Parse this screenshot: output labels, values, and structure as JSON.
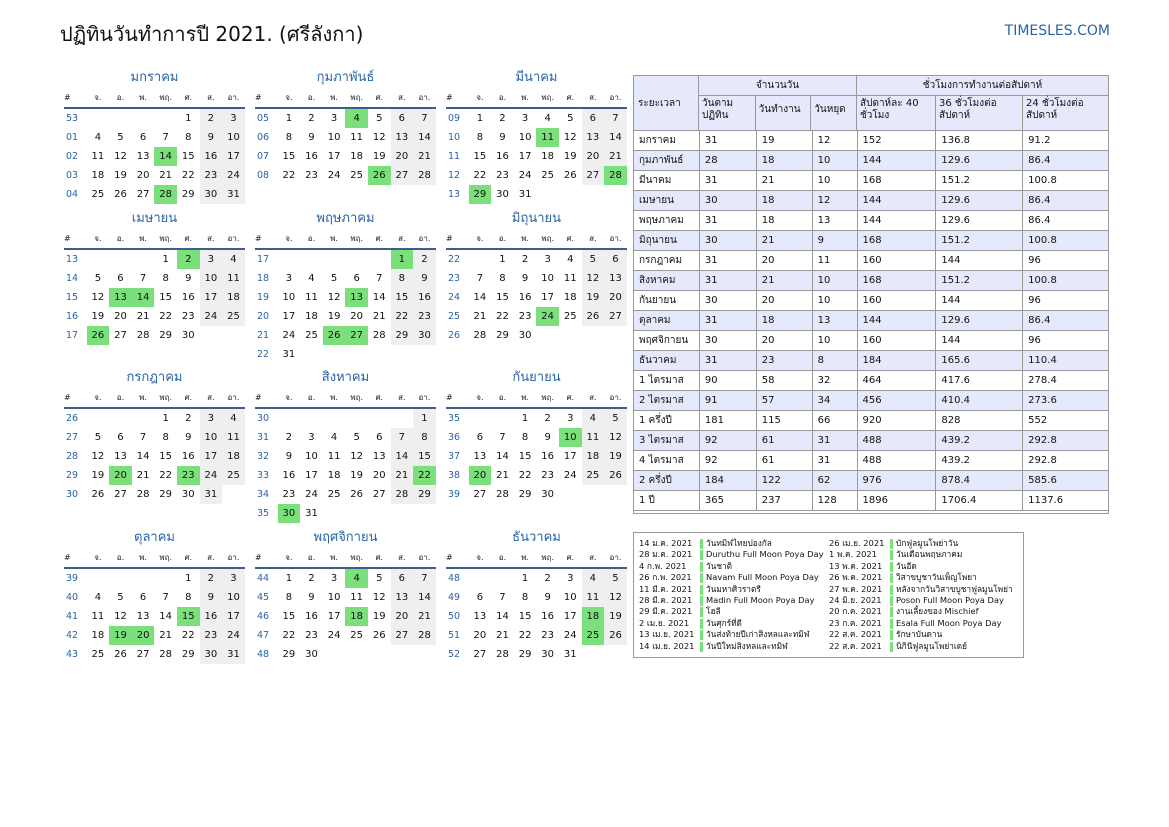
{
  "title": "ปฏิทินวันทำการปี 2021. (ศรีลังกา)",
  "site": "TIMESLES.COM",
  "colors": {
    "accent": "#2a64a8",
    "holiday": "#7be07b",
    "weekend": "#efefef",
    "table_header": "#e6e9fb"
  },
  "weekday_headers": [
    "#",
    "จ.",
    "อ.",
    "พ.",
    "พฤ.",
    "ศ.",
    "ส.",
    "อา."
  ],
  "months": [
    {
      "name": "มกราคม",
      "weeks": [
        {
          "n": "53",
          "d": [
            "",
            "",
            "",
            "",
            "1",
            "2",
            "3"
          ]
        },
        {
          "n": "01",
          "d": [
            "4",
            "5",
            "6",
            "7",
            "8",
            "9",
            "10"
          ]
        },
        {
          "n": "02",
          "d": [
            "11",
            "12",
            "13",
            "14",
            "15",
            "16",
            "17"
          ]
        },
        {
          "n": "03",
          "d": [
            "18",
            "19",
            "20",
            "21",
            "22",
            "23",
            "24"
          ]
        },
        {
          "n": "04",
          "d": [
            "25",
            "26",
            "27",
            "28",
            "29",
            "30",
            "31"
          ]
        }
      ],
      "holidays": [
        "14",
        "28"
      ]
    },
    {
      "name": "กุมภาพันธ์",
      "weeks": [
        {
          "n": "05",
          "d": [
            "1",
            "2",
            "3",
            "4",
            "5",
            "6",
            "7"
          ]
        },
        {
          "n": "06",
          "d": [
            "8",
            "9",
            "10",
            "11",
            "12",
            "13",
            "14"
          ]
        },
        {
          "n": "07",
          "d": [
            "15",
            "16",
            "17",
            "18",
            "19",
            "20",
            "21"
          ]
        },
        {
          "n": "08",
          "d": [
            "22",
            "23",
            "24",
            "25",
            "26",
            "27",
            "28"
          ]
        }
      ],
      "holidays": [
        "4",
        "26"
      ]
    },
    {
      "name": "มีนาคม",
      "weeks": [
        {
          "n": "09",
          "d": [
            "1",
            "2",
            "3",
            "4",
            "5",
            "6",
            "7"
          ]
        },
        {
          "n": "10",
          "d": [
            "8",
            "9",
            "10",
            "11",
            "12",
            "13",
            "14"
          ]
        },
        {
          "n": "11",
          "d": [
            "15",
            "16",
            "17",
            "18",
            "19",
            "20",
            "21"
          ]
        },
        {
          "n": "12",
          "d": [
            "22",
            "23",
            "24",
            "25",
            "26",
            "27",
            "28"
          ]
        },
        {
          "n": "13",
          "d": [
            "29",
            "30",
            "31",
            "",
            "",
            "",
            ""
          ]
        }
      ],
      "holidays": [
        "11",
        "28",
        "29"
      ]
    },
    {
      "name": "เมษายน",
      "weeks": [
        {
          "n": "13",
          "d": [
            "",
            "",
            "",
            "1",
            "2",
            "3",
            "4"
          ]
        },
        {
          "n": "14",
          "d": [
            "5",
            "6",
            "7",
            "8",
            "9",
            "10",
            "11"
          ]
        },
        {
          "n": "15",
          "d": [
            "12",
            "13",
            "14",
            "15",
            "16",
            "17",
            "18"
          ]
        },
        {
          "n": "16",
          "d": [
            "19",
            "20",
            "21",
            "22",
            "23",
            "24",
            "25"
          ]
        },
        {
          "n": "17",
          "d": [
            "26",
            "27",
            "28",
            "29",
            "30",
            "",
            ""
          ]
        }
      ],
      "holidays": [
        "2",
        "13",
        "14",
        "26"
      ]
    },
    {
      "name": "พฤษภาคม",
      "weeks": [
        {
          "n": "17",
          "d": [
            "",
            "",
            "",
            "",
            "",
            "1",
            "2"
          ]
        },
        {
          "n": "18",
          "d": [
            "3",
            "4",
            "5",
            "6",
            "7",
            "8",
            "9"
          ]
        },
        {
          "n": "19",
          "d": [
            "10",
            "11",
            "12",
            "13",
            "14",
            "15",
            "16"
          ]
        },
        {
          "n": "20",
          "d": [
            "17",
            "18",
            "19",
            "20",
            "21",
            "22",
            "23"
          ]
        },
        {
          "n": "21",
          "d": [
            "24",
            "25",
            "26",
            "27",
            "28",
            "29",
            "30"
          ]
        },
        {
          "n": "22",
          "d": [
            "31",
            "",
            "",
            "",
            "",
            "",
            ""
          ]
        }
      ],
      "holidays": [
        "1",
        "13",
        "26",
        "27"
      ]
    },
    {
      "name": "มิถุนายน",
      "weeks": [
        {
          "n": "22",
          "d": [
            "",
            "1",
            "2",
            "3",
            "4",
            "5",
            "6"
          ]
        },
        {
          "n": "23",
          "d": [
            "7",
            "8",
            "9",
            "10",
            "11",
            "12",
            "13"
          ]
        },
        {
          "n": "24",
          "d": [
            "14",
            "15",
            "16",
            "17",
            "18",
            "19",
            "20"
          ]
        },
        {
          "n": "25",
          "d": [
            "21",
            "22",
            "23",
            "24",
            "25",
            "26",
            "27"
          ]
        },
        {
          "n": "26",
          "d": [
            "28",
            "29",
            "30",
            "",
            "",
            "",
            ""
          ]
        }
      ],
      "holidays": [
        "24"
      ]
    },
    {
      "name": "กรกฎาคม",
      "weeks": [
        {
          "n": "26",
          "d": [
            "",
            "",
            "",
            "1",
            "2",
            "3",
            "4"
          ]
        },
        {
          "n": "27",
          "d": [
            "5",
            "6",
            "7",
            "8",
            "9",
            "10",
            "11"
          ]
        },
        {
          "n": "28",
          "d": [
            "12",
            "13",
            "14",
            "15",
            "16",
            "17",
            "18"
          ]
        },
        {
          "n": "29",
          "d": [
            "19",
            "20",
            "21",
            "22",
            "23",
            "24",
            "25"
          ]
        },
        {
          "n": "30",
          "d": [
            "26",
            "27",
            "28",
            "29",
            "30",
            "31",
            ""
          ]
        }
      ],
      "holidays": [
        "20",
        "23"
      ]
    },
    {
      "name": "สิงหาคม",
      "weeks": [
        {
          "n": "30",
          "d": [
            "",
            "",
            "",
            "",
            "",
            "",
            "1"
          ]
        },
        {
          "n": "31",
          "d": [
            "2",
            "3",
            "4",
            "5",
            "6",
            "7",
            "8"
          ]
        },
        {
          "n": "32",
          "d": [
            "9",
            "10",
            "11",
            "12",
            "13",
            "14",
            "15"
          ]
        },
        {
          "n": "33",
          "d": [
            "16",
            "17",
            "18",
            "19",
            "20",
            "21",
            "22"
          ]
        },
        {
          "n": "34",
          "d": [
            "23",
            "24",
            "25",
            "26",
            "27",
            "28",
            "29"
          ]
        },
        {
          "n": "35",
          "d": [
            "30",
            "31",
            "",
            "",
            "",
            "",
            ""
          ]
        }
      ],
      "holidays": [
        "22",
        "30"
      ]
    },
    {
      "name": "กันยายน",
      "weeks": [
        {
          "n": "35",
          "d": [
            "",
            "",
            "1",
            "2",
            "3",
            "4",
            "5"
          ]
        },
        {
          "n": "36",
          "d": [
            "6",
            "7",
            "8",
            "9",
            "10",
            "11",
            "12"
          ]
        },
        {
          "n": "37",
          "d": [
            "13",
            "14",
            "15",
            "16",
            "17",
            "18",
            "19"
          ]
        },
        {
          "n": "38",
          "d": [
            "20",
            "21",
            "22",
            "23",
            "24",
            "25",
            "26"
          ]
        },
        {
          "n": "39",
          "d": [
            "27",
            "28",
            "29",
            "30",
            "",
            "",
            ""
          ]
        }
      ],
      "holidays": [
        "10",
        "20"
      ]
    },
    {
      "name": "ตุลาคม",
      "weeks": [
        {
          "n": "39",
          "d": [
            "",
            "",
            "",
            "",
            "1",
            "2",
            "3"
          ]
        },
        {
          "n": "40",
          "d": [
            "4",
            "5",
            "6",
            "7",
            "8",
            "9",
            "10"
          ]
        },
        {
          "n": "41",
          "d": [
            "11",
            "12",
            "13",
            "14",
            "15",
            "16",
            "17"
          ]
        },
        {
          "n": "42",
          "d": [
            "18",
            "19",
            "20",
            "21",
            "22",
            "23",
            "24"
          ]
        },
        {
          "n": "43",
          "d": [
            "25",
            "26",
            "27",
            "28",
            "29",
            "30",
            "31"
          ]
        }
      ],
      "holidays": [
        "15",
        "19",
        "20"
      ]
    },
    {
      "name": "พฤศจิกายน",
      "weeks": [
        {
          "n": "44",
          "d": [
            "1",
            "2",
            "3",
            "4",
            "5",
            "6",
            "7"
          ]
        },
        {
          "n": "45",
          "d": [
            "8",
            "9",
            "10",
            "11",
            "12",
            "13",
            "14"
          ]
        },
        {
          "n": "46",
          "d": [
            "15",
            "16",
            "17",
            "18",
            "19",
            "20",
            "21"
          ]
        },
        {
          "n": "47",
          "d": [
            "22",
            "23",
            "24",
            "25",
            "26",
            "27",
            "28"
          ]
        },
        {
          "n": "48",
          "d": [
            "29",
            "30",
            "",
            "",
            "",
            "",
            ""
          ]
        }
      ],
      "holidays": [
        "4",
        "18"
      ]
    },
    {
      "name": "ธันวาคม",
      "weeks": [
        {
          "n": "48",
          "d": [
            "",
            "",
            "1",
            "2",
            "3",
            "4",
            "5"
          ]
        },
        {
          "n": "49",
          "d": [
            "6",
            "7",
            "8",
            "9",
            "10",
            "11",
            "12"
          ]
        },
        {
          "n": "50",
          "d": [
            "13",
            "14",
            "15",
            "16",
            "17",
            "18",
            "19"
          ]
        },
        {
          "n": "51",
          "d": [
            "20",
            "21",
            "22",
            "23",
            "24",
            "25",
            "26"
          ]
        },
        {
          "n": "52",
          "d": [
            "27",
            "28",
            "29",
            "30",
            "31",
            "",
            ""
          ]
        }
      ],
      "holidays": [
        "18",
        "25"
      ]
    }
  ],
  "stats": {
    "period_label": "ระยะเวลา",
    "days_group": "จำนวนวัน",
    "hours_group": "ชั่วโมงการทำงานต่อสัปดาห์",
    "columns": [
      "วันตามปฏิทิน",
      "วันทำงาน",
      "วันหยุด",
      "สัปดาห์ละ 40 ชั่วโมง",
      "36 ชั่วโมงต่อสัปดาห์",
      "24 ชั่วโมงต่อสัปดาห์"
    ],
    "rows": [
      [
        "มกราคม",
        "31",
        "19",
        "12",
        "152",
        "136.8",
        "91.2"
      ],
      [
        "กุมภาพันธ์",
        "28",
        "18",
        "10",
        "144",
        "129.6",
        "86.4"
      ],
      [
        "มีนาคม",
        "31",
        "21",
        "10",
        "168",
        "151.2",
        "100.8"
      ],
      [
        "เมษายน",
        "30",
        "18",
        "12",
        "144",
        "129.6",
        "86.4"
      ],
      [
        "พฤษภาคม",
        "31",
        "18",
        "13",
        "144",
        "129.6",
        "86.4"
      ],
      [
        "มิถุนายน",
        "30",
        "21",
        "9",
        "168",
        "151.2",
        "100.8"
      ],
      [
        "กรกฎาคม",
        "31",
        "20",
        "11",
        "160",
        "144",
        "96"
      ],
      [
        "สิงหาคม",
        "31",
        "21",
        "10",
        "168",
        "151.2",
        "100.8"
      ],
      [
        "กันยายน",
        "30",
        "20",
        "10",
        "160",
        "144",
        "96"
      ],
      [
        "ตุลาคม",
        "31",
        "18",
        "13",
        "144",
        "129.6",
        "86.4"
      ],
      [
        "พฤศจิกายน",
        "30",
        "20",
        "10",
        "160",
        "144",
        "96"
      ],
      [
        "ธันวาคม",
        "31",
        "23",
        "8",
        "184",
        "165.6",
        "110.4"
      ],
      [
        "1 ไตรมาส",
        "90",
        "58",
        "32",
        "464",
        "417.6",
        "278.4"
      ],
      [
        "2 ไตรมาส",
        "91",
        "57",
        "34",
        "456",
        "410.4",
        "273.6"
      ],
      [
        "1 ครึ่งปี",
        "181",
        "115",
        "66",
        "920",
        "828",
        "552"
      ],
      [
        "3 ไตรมาส",
        "92",
        "61",
        "31",
        "488",
        "439.2",
        "292.8"
      ],
      [
        "4 ไตรมาส",
        "92",
        "61",
        "31",
        "488",
        "439.2",
        "292.8"
      ],
      [
        "2 ครึ่งปี",
        "184",
        "122",
        "62",
        "976",
        "878.4",
        "585.6"
      ],
      [
        "1 ปี",
        "365",
        "237",
        "128",
        "1896",
        "1706.4",
        "1137.6"
      ]
    ]
  },
  "holidays_list": {
    "left": [
      [
        "14 ม.ค. 2021",
        "วันทมิฬไทยปองกัล"
      ],
      [
        "28 ม.ค. 2021",
        "Duruthu Full Moon Poya Day"
      ],
      [
        "4 ก.พ. 2021",
        "วันชาติ"
      ],
      [
        "26 ก.พ. 2021",
        "Navam Full Moon Poya Day"
      ],
      [
        "11 มี.ค. 2021",
        "วันมหาศิวราตรี"
      ],
      [
        "28 มี.ค. 2021",
        "Madin Full Moon Poya Day"
      ],
      [
        "29 มี.ค. 2021",
        "โฮลี"
      ],
      [
        "2 เม.ย. 2021",
        "วันศุกร์ที่ดี"
      ],
      [
        "13 เม.ย. 2021",
        "วันส่งท้ายปีเก่าสิงหลและทมิฬ"
      ],
      [
        "14 เม.ย. 2021",
        "วันปีใหม่สิงหลและทมิฬ"
      ]
    ],
    "right": [
      [
        "26 เม.ย. 2021",
        "บักฟูลมูนโพย่าวัน"
      ],
      [
        "1 พ.ค. 2021",
        "วันเดือนพฤษภาคม"
      ],
      [
        "13 พ.ค. 2021",
        "วันอีด"
      ],
      [
        "26 พ.ค. 2021",
        "วิสาขบูชาวันเพ็ญโพยา"
      ],
      [
        "27 พ.ค. 2021",
        "หลังจากวันวิสาขบูชาฟูลมูนโพย่า"
      ],
      [
        "24 มิ.ย. 2021",
        "Poson Full Moon Poya Day"
      ],
      [
        "20 ก.ค. 2021",
        "งานเลี้ยงของ Mischief"
      ],
      [
        "23 ก.ค. 2021",
        "Esala Full Moon Poya Day"
      ],
      [
        "22 ส.ค. 2021",
        "รักษาบันดาน"
      ],
      [
        "22 ส.ค. 2021",
        "นิกินีฟูลมูนโพย่าเดย์"
      ]
    ]
  }
}
